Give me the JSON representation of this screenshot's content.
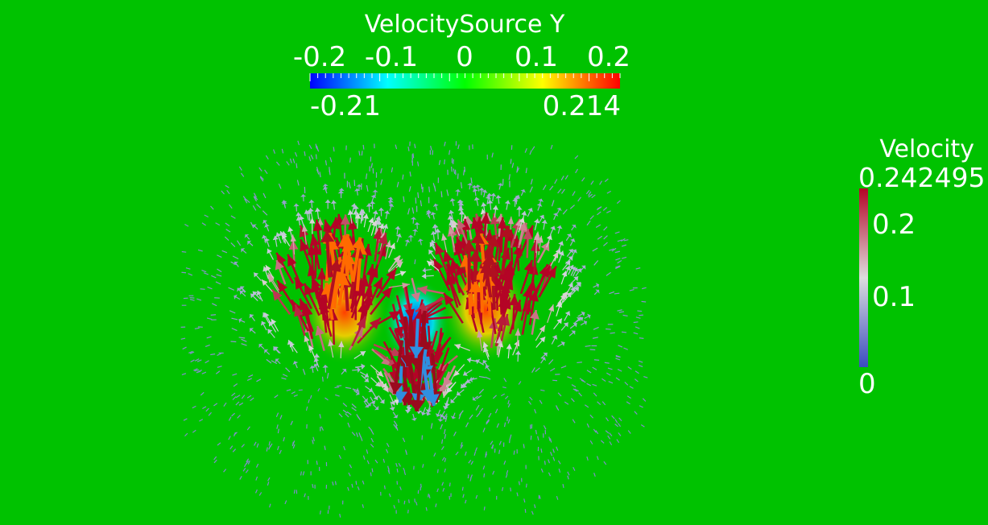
{
  "background_color": "#00c200",
  "source_legend": {
    "title": "VelocitySource Y",
    "ticks": [
      "-0.2",
      "-0.1",
      "0",
      "0.1",
      "0.2"
    ],
    "range_min_label": "-0.21",
    "range_max_label": "0.214",
    "colormap": "jet (blue-cyan-green-yellow-red)"
  },
  "velocity_legend": {
    "title": "Velocity",
    "max_label": "0.242495",
    "ticks": [
      "0.2",
      "0.1"
    ],
    "min_label": "0",
    "colormap": "cool-to-warm (blue-white-red)"
  }
}
